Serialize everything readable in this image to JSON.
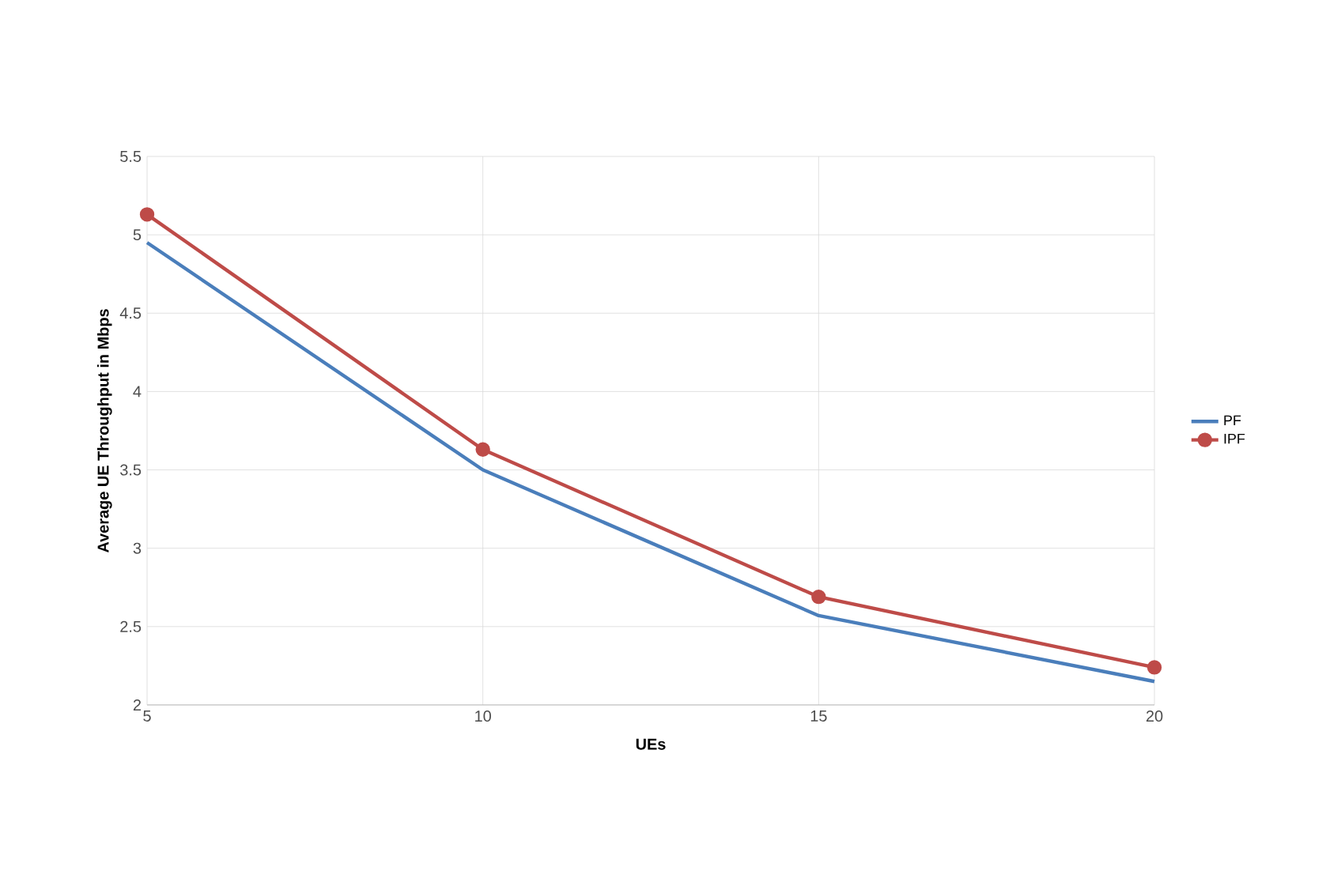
{
  "chart_data": {
    "type": "line",
    "xlabel": "UEs",
    "ylabel": "Average UE Throughput in Mbps",
    "x": [
      5,
      10,
      15,
      20
    ],
    "series": [
      {
        "name": "PF",
        "color": "#4a7ebb",
        "values": [
          4.95,
          3.5,
          2.57,
          2.15
        ],
        "marker": "none"
      },
      {
        "name": "IPF",
        "color": "#be4b48",
        "values": [
          5.13,
          3.63,
          2.69,
          2.24
        ],
        "marker": "circle"
      }
    ],
    "xlim": [
      5,
      20
    ],
    "xticks": [
      5,
      10,
      15,
      20
    ],
    "ylim": [
      2,
      5.5
    ],
    "yticks": [
      2,
      2.5,
      3,
      3.5,
      4,
      4.5,
      5,
      5.5
    ],
    "grid": true,
    "legend": "right"
  }
}
